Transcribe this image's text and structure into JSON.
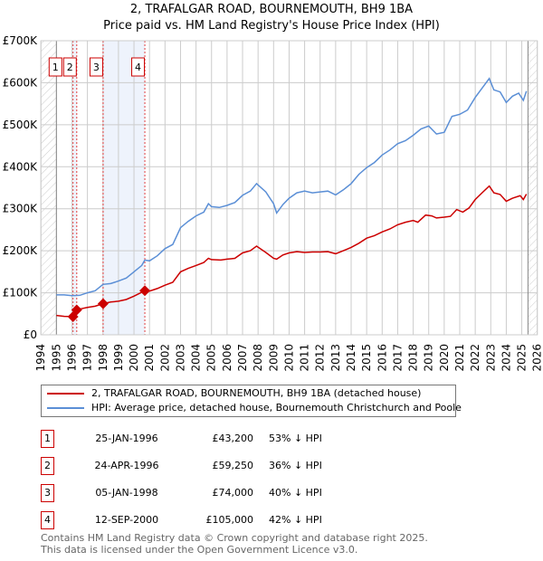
{
  "title": {
    "line1": "2, TRAFALGAR ROAD, BOURNEMOUTH, BH9 1BA",
    "line2": "Price paid vs. HM Land Registry's House Price Index (HPI)"
  },
  "colors": {
    "property": "#cc0000",
    "hpi": "#5b8fd6",
    "shade": "#eef3fc"
  },
  "chart_data": {
    "type": "line",
    "xlim": [
      1994,
      2026
    ],
    "ylim": [
      0,
      700000
    ],
    "y_ticks": [
      {
        "v": 0,
        "label": "£0"
      },
      {
        "v": 100000,
        "label": "£100K"
      },
      {
        "v": 200000,
        "label": "£200K"
      },
      {
        "v": 300000,
        "label": "£300K"
      },
      {
        "v": 400000,
        "label": "£400K"
      },
      {
        "v": 500000,
        "label": "£500K"
      },
      {
        "v": 600000,
        "label": "£600K"
      },
      {
        "v": 700000,
        "label": "£700K"
      }
    ],
    "x_ticks": [
      "1994",
      "1995",
      "1996",
      "1997",
      "1998",
      "1999",
      "2000",
      "2001",
      "2002",
      "2003",
      "2004",
      "2005",
      "2006",
      "2007",
      "2008",
      "2009",
      "2010",
      "2011",
      "2012",
      "2013",
      "2014",
      "2015",
      "2016",
      "2017",
      "2018",
      "2019",
      "2020",
      "2021",
      "2022",
      "2023",
      "2024",
      "2025",
      "2026"
    ],
    "hatched_ranges": [
      [
        1994,
        1995
      ],
      [
        2025.4,
        2026
      ]
    ],
    "shaded_ranges": [
      [
        1996.07,
        1996.31
      ],
      [
        1998.01,
        2000.7
      ]
    ],
    "series": [
      {
        "name": "2, TRAFALGAR ROAD, BOURNEMOUTH, BH9 1BA (detached house)",
        "color": "#cc0000",
        "points": [
          [
            1995,
            46000
          ],
          [
            1995.5,
            44000
          ],
          [
            1996.07,
            43200
          ],
          [
            1996.31,
            59250
          ],
          [
            1996.6,
            62000
          ],
          [
            1997,
            65000
          ],
          [
            1997.5,
            68000
          ],
          [
            1998.01,
            74000
          ],
          [
            1998.5,
            78000
          ],
          [
            1999,
            80000
          ],
          [
            1999.5,
            84000
          ],
          [
            2000,
            92000
          ],
          [
            2000.7,
            105000
          ],
          [
            2001,
            104000
          ],
          [
            2001.5,
            110000
          ],
          [
            2002,
            118000
          ],
          [
            2002.5,
            125000
          ],
          [
            2003,
            150000
          ],
          [
            2003.5,
            158000
          ],
          [
            2004,
            165000
          ],
          [
            2004.5,
            172000
          ],
          [
            2004.8,
            182000
          ],
          [
            2005,
            179000
          ],
          [
            2005.6,
            178000
          ],
          [
            2006,
            180000
          ],
          [
            2006.5,
            182000
          ],
          [
            2007,
            195000
          ],
          [
            2007.5,
            200000
          ],
          [
            2007.9,
            211000
          ],
          [
            2008.5,
            196000
          ],
          [
            2009,
            182000
          ],
          [
            2009.2,
            180000
          ],
          [
            2009.6,
            190000
          ],
          [
            2010,
            195000
          ],
          [
            2010.5,
            198000
          ],
          [
            2011,
            196000
          ],
          [
            2011.5,
            197000
          ],
          [
            2012,
            197000
          ],
          [
            2012.5,
            198000
          ],
          [
            2013,
            193000
          ],
          [
            2013.5,
            200000
          ],
          [
            2014,
            208000
          ],
          [
            2014.5,
            218000
          ],
          [
            2015,
            230000
          ],
          [
            2015.5,
            236000
          ],
          [
            2016,
            245000
          ],
          [
            2016.5,
            252000
          ],
          [
            2017,
            262000
          ],
          [
            2017.5,
            268000
          ],
          [
            2018,
            272000
          ],
          [
            2018.3,
            268000
          ],
          [
            2018.8,
            285000
          ],
          [
            2019.2,
            283000
          ],
          [
            2019.5,
            278000
          ],
          [
            2020,
            280000
          ],
          [
            2020.4,
            282000
          ],
          [
            2020.8,
            298000
          ],
          [
            2021.2,
            292000
          ],
          [
            2021.6,
            302000
          ],
          [
            2022,
            322000
          ],
          [
            2022.5,
            340000
          ],
          [
            2022.9,
            354000
          ],
          [
            2023.2,
            338000
          ],
          [
            2023.6,
            334000
          ],
          [
            2024,
            318000
          ],
          [
            2024.4,
            325000
          ],
          [
            2024.9,
            331000
          ],
          [
            2025.1,
            322000
          ],
          [
            2025.3,
            335000
          ]
        ]
      },
      {
        "name": "HPI: Average price, detached house, Bournemouth Christchurch and Poole",
        "color": "#5b8fd6",
        "points": [
          [
            1995,
            95000
          ],
          [
            1995.5,
            95000
          ],
          [
            1996,
            93000
          ],
          [
            1996.5,
            94000
          ],
          [
            1997,
            100000
          ],
          [
            1997.5,
            105000
          ],
          [
            1998,
            120000
          ],
          [
            1998.5,
            122000
          ],
          [
            1999,
            128000
          ],
          [
            1999.5,
            135000
          ],
          [
            2000,
            150000
          ],
          [
            2000.5,
            165000
          ],
          [
            2000.7,
            178000
          ],
          [
            2001,
            176000
          ],
          [
            2001.5,
            188000
          ],
          [
            2002,
            205000
          ],
          [
            2002.5,
            215000
          ],
          [
            2003,
            255000
          ],
          [
            2003.5,
            270000
          ],
          [
            2004,
            283000
          ],
          [
            2004.5,
            292000
          ],
          [
            2004.8,
            312000
          ],
          [
            2005,
            305000
          ],
          [
            2005.5,
            303000
          ],
          [
            2006,
            308000
          ],
          [
            2006.5,
            315000
          ],
          [
            2007,
            332000
          ],
          [
            2007.5,
            342000
          ],
          [
            2007.9,
            360000
          ],
          [
            2008.5,
            340000
          ],
          [
            2009,
            312000
          ],
          [
            2009.2,
            290000
          ],
          [
            2009.6,
            310000
          ],
          [
            2010,
            325000
          ],
          [
            2010.5,
            338000
          ],
          [
            2011,
            342000
          ],
          [
            2011.5,
            338000
          ],
          [
            2012,
            340000
          ],
          [
            2012.5,
            342000
          ],
          [
            2013,
            333000
          ],
          [
            2013.5,
            345000
          ],
          [
            2014,
            360000
          ],
          [
            2014.5,
            382000
          ],
          [
            2015,
            398000
          ],
          [
            2015.5,
            410000
          ],
          [
            2016,
            428000
          ],
          [
            2016.5,
            440000
          ],
          [
            2017,
            455000
          ],
          [
            2017.5,
            462000
          ],
          [
            2018,
            475000
          ],
          [
            2018.5,
            490000
          ],
          [
            2019,
            497000
          ],
          [
            2019.5,
            478000
          ],
          [
            2020,
            482000
          ],
          [
            2020.5,
            520000
          ],
          [
            2021,
            525000
          ],
          [
            2021.5,
            535000
          ],
          [
            2022,
            565000
          ],
          [
            2022.5,
            590000
          ],
          [
            2022.9,
            610000
          ],
          [
            2023.2,
            583000
          ],
          [
            2023.6,
            578000
          ],
          [
            2024,
            553000
          ],
          [
            2024.4,
            568000
          ],
          [
            2024.8,
            575000
          ],
          [
            2025.1,
            558000
          ],
          [
            2025.3,
            580000
          ]
        ]
      }
    ],
    "sale_markers": [
      {
        "label": "1",
        "x": 1996.07,
        "y": 43200
      },
      {
        "label": "2",
        "x": 1996.31,
        "y": 59250
      },
      {
        "label": "3",
        "x": 1998.01,
        "y": 74000
      },
      {
        "label": "4",
        "x": 2000.7,
        "y": 105000
      }
    ]
  },
  "legend": {
    "property": "2, TRAFALGAR ROAD, BOURNEMOUTH, BH9 1BA (detached house)",
    "hpi": "HPI: Average price, detached house, Bournemouth Christchurch and Poole"
  },
  "sales": [
    {
      "num": "1",
      "date": "25-JAN-1996",
      "price": "£43,200",
      "pct": "53% ↓ HPI"
    },
    {
      "num": "2",
      "date": "24-APR-1996",
      "price": "£59,250",
      "pct": "36% ↓ HPI"
    },
    {
      "num": "3",
      "date": "05-JAN-1998",
      "price": "£74,000",
      "pct": "40% ↓ HPI"
    },
    {
      "num": "4",
      "date": "12-SEP-2000",
      "price": "£105,000",
      "pct": "42% ↓ HPI"
    }
  ],
  "footer": {
    "line1": "Contains HM Land Registry data © Crown copyright and database right 2025.",
    "line2": "This data is licensed under the Open Government Licence v3.0."
  }
}
